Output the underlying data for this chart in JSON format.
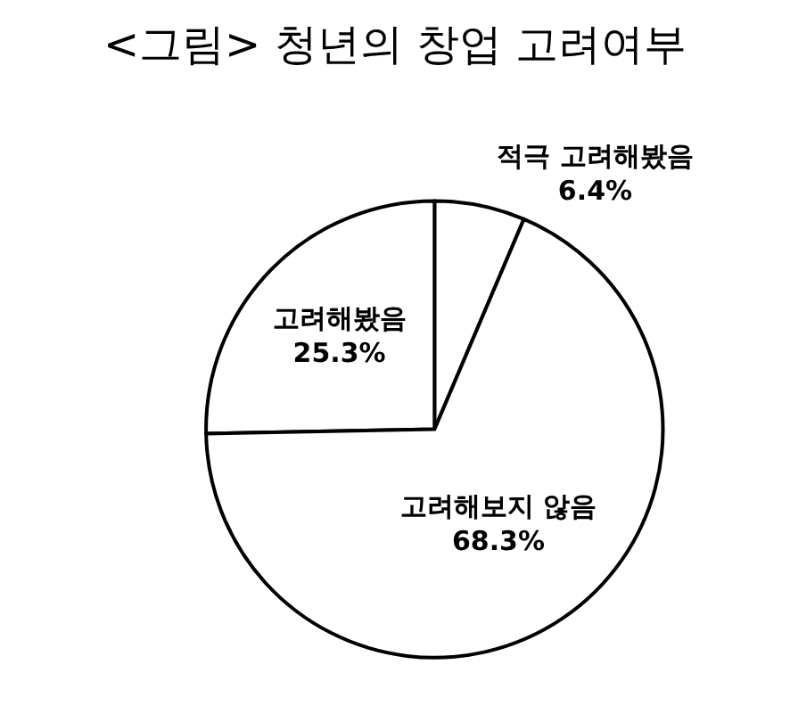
{
  "chart_data": {
    "type": "pie",
    "title": "<그림> 청년의 창업 고려여부",
    "categories": [
      "적극 고려해봤음",
      "고려해봤음",
      "고려해보지 않음"
    ],
    "values": [
      6.4,
      25.3,
      68.3
    ],
    "value_labels": [
      "6.4%",
      "25.3%",
      "68.3%"
    ],
    "colors": [
      "#ffffff",
      "#ffffff",
      "#ffffff"
    ]
  }
}
